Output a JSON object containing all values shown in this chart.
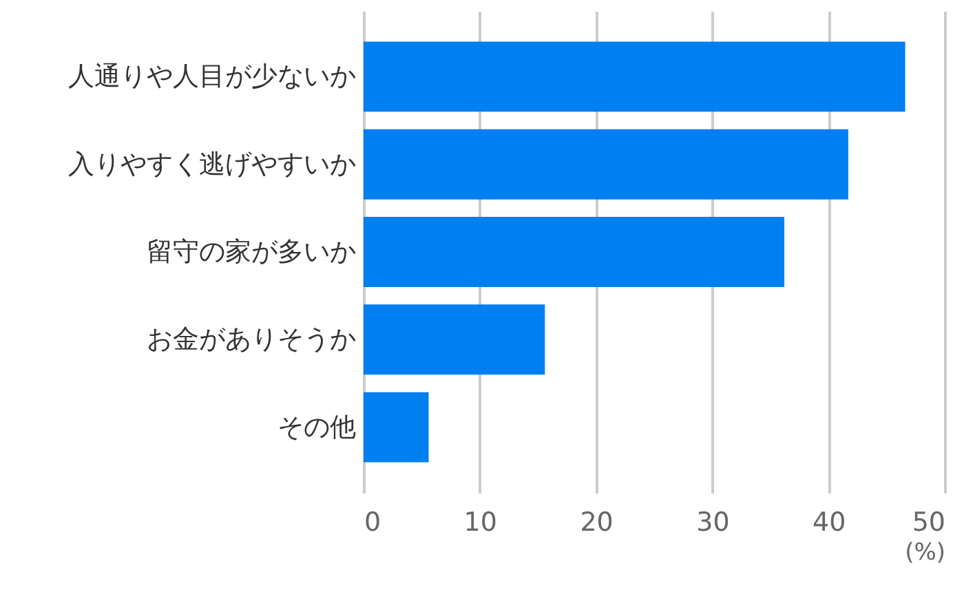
{
  "chart_data": {
    "type": "bar",
    "orientation": "horizontal",
    "categories": [
      "人通りや人目が少ないか",
      "入りやすく逃げやすいか",
      "留守の家が多いか",
      "お金がありそうか",
      "その他"
    ],
    "values": [
      46.6,
      41.7,
      36.2,
      15.6,
      5.6
    ],
    "color": "#007ff0",
    "xlim": [
      0,
      50
    ],
    "xticks": [
      0,
      10,
      20,
      30,
      40,
      50
    ],
    "xlabel": "(%)",
    "grid": "x"
  }
}
